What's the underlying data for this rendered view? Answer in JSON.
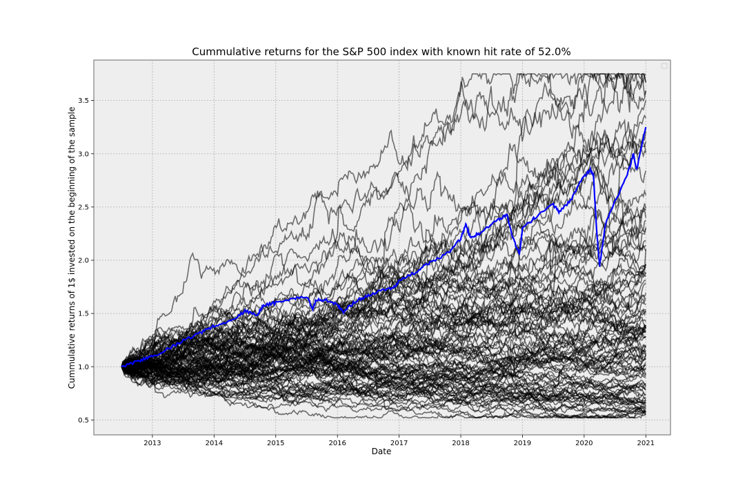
{
  "chart_data": {
    "type": "line",
    "title": "Cummulative returns for the S&P 500 index with known hit rate of 52.0%",
    "xlabel": "Date",
    "ylabel": "Cummulative returns of 1$ invested on the beginning of the sample",
    "x_ticks": [
      "2013",
      "2014",
      "2015",
      "2016",
      "2017",
      "2018",
      "2019",
      "2020",
      "2021"
    ],
    "y_ticks": [
      "0.5",
      "1.0",
      "1.5",
      "2.0",
      "2.5",
      "3.0",
      "3.5"
    ],
    "xlim": [
      2012.05,
      2021.4
    ],
    "ylim": [
      0.36,
      3.88
    ],
    "grid": true,
    "legend": "top-right, empty",
    "x_start": 2012.5,
    "x_end": 2021.0,
    "background": "#eeeeee",
    "colors": {
      "highlight": "#0000ff",
      "simulations": "#000000"
    },
    "highlight_series": {
      "name": "",
      "x": [
        2012.5,
        2012.8,
        2013.0,
        2013.3,
        2013.5,
        2013.8,
        2014.0,
        2014.3,
        2014.5,
        2014.7,
        2014.8,
        2015.0,
        2015.3,
        2015.5,
        2015.6,
        2015.65,
        2015.8,
        2016.0,
        2016.1,
        2016.3,
        2016.5,
        2016.7,
        2016.9,
        2017.0,
        2017.3,
        2017.5,
        2017.8,
        2018.0,
        2018.08,
        2018.15,
        2018.3,
        2018.6,
        2018.75,
        2018.85,
        2018.95,
        2019.0,
        2019.2,
        2019.5,
        2019.6,
        2019.8,
        2019.95,
        2020.1,
        2020.15,
        2020.2,
        2020.25,
        2020.35,
        2020.5,
        2020.7,
        2020.8,
        2020.85,
        2021.0
      ],
      "y": [
        1.0,
        1.06,
        1.1,
        1.18,
        1.25,
        1.32,
        1.38,
        1.44,
        1.52,
        1.49,
        1.58,
        1.6,
        1.64,
        1.66,
        1.55,
        1.62,
        1.63,
        1.58,
        1.52,
        1.62,
        1.67,
        1.72,
        1.74,
        1.8,
        1.9,
        1.98,
        2.07,
        2.2,
        2.34,
        2.22,
        2.25,
        2.38,
        2.42,
        2.2,
        2.05,
        2.3,
        2.4,
        2.52,
        2.45,
        2.58,
        2.75,
        2.85,
        2.8,
        2.3,
        1.95,
        2.35,
        2.55,
        2.8,
        3.0,
        2.85,
        3.25
      ]
    },
    "simulations": {
      "count": 100,
      "x_start": 2012.5,
      "x_end": 2021.0,
      "start_value": 1.0
    }
  }
}
